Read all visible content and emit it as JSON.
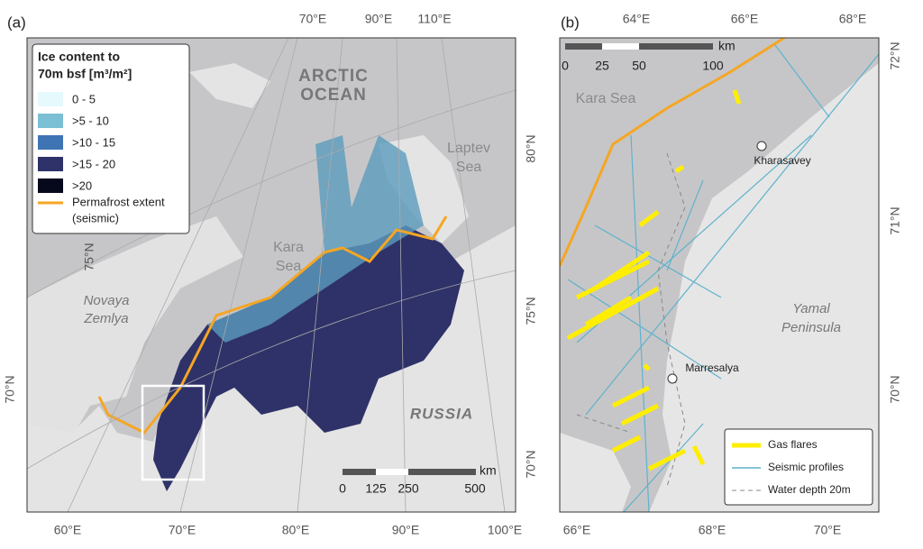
{
  "panel_a": {
    "label": "(a)",
    "legend": {
      "title_line1": "Ice content to",
      "title_line2": "70m bsf [m³/m²]",
      "items": [
        {
          "label": "0 - 5",
          "color": "#e6f9fc"
        },
        {
          "label": ">5 - 10",
          "color": "#7bbfd4"
        },
        {
          "label": ">10 - 15",
          "color": "#3f74b4"
        },
        {
          "label": ">15 - 20",
          "color": "#2f3268"
        },
        {
          "label": ">20",
          "color": "#06081c"
        }
      ],
      "permafrost_line1": "Permafrost extent",
      "permafrost_line2": "(seismic)",
      "permafrost_color": "#f5a623"
    },
    "places": {
      "arctic": "ARCTIC",
      "ocean": "OCEAN",
      "laptev": "Laptev",
      "laptev_sea": "Sea",
      "kara": "Kara",
      "kara_sea": "Sea",
      "novaya": "Novaya",
      "zemlya": "Zemlya",
      "russia": "RUSSIA"
    },
    "graticule": {
      "top": [
        "70°E",
        "90°E",
        "110°E"
      ],
      "right": [
        "80°N",
        "75°N",
        "70°N"
      ],
      "left": [
        "75°N",
        "70°N"
      ],
      "bottom": [
        "60°E",
        "70°E",
        "80°E",
        "90°E",
        "100°E"
      ]
    },
    "scale": {
      "ticks": [
        "0",
        "125",
        "250",
        "500"
      ],
      "unit": "km"
    }
  },
  "panel_b": {
    "label": "(b)",
    "places": {
      "kara_sea": "Kara Sea",
      "kharasavey": "Kharasavey",
      "marresalya": "Marresalya",
      "yamal": "Yamal",
      "peninsula": "Peninsula"
    },
    "graticule": {
      "top": [
        "64°E",
        "66°E",
        "68°E"
      ],
      "right": [
        "72°N",
        "71°N",
        "70°N"
      ],
      "bottom": [
        "66°E",
        "68°E",
        "70°E"
      ]
    },
    "scale": {
      "ticks": [
        "0",
        "25",
        "50",
        "100"
      ],
      "unit": "km"
    },
    "legend": [
      "Gas flares",
      "Seismic profiles",
      "Water depth 20m"
    ]
  }
}
